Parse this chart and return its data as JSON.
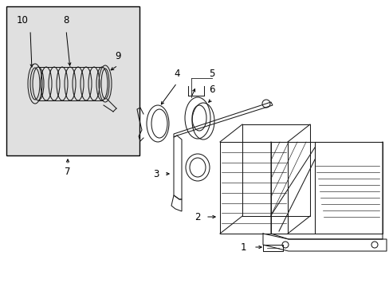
{
  "bg_color": "#ffffff",
  "line_color": "#1a1a1a",
  "inset_bg": "#e8e8e8",
  "font_size": 8.5,
  "lw": 0.75
}
